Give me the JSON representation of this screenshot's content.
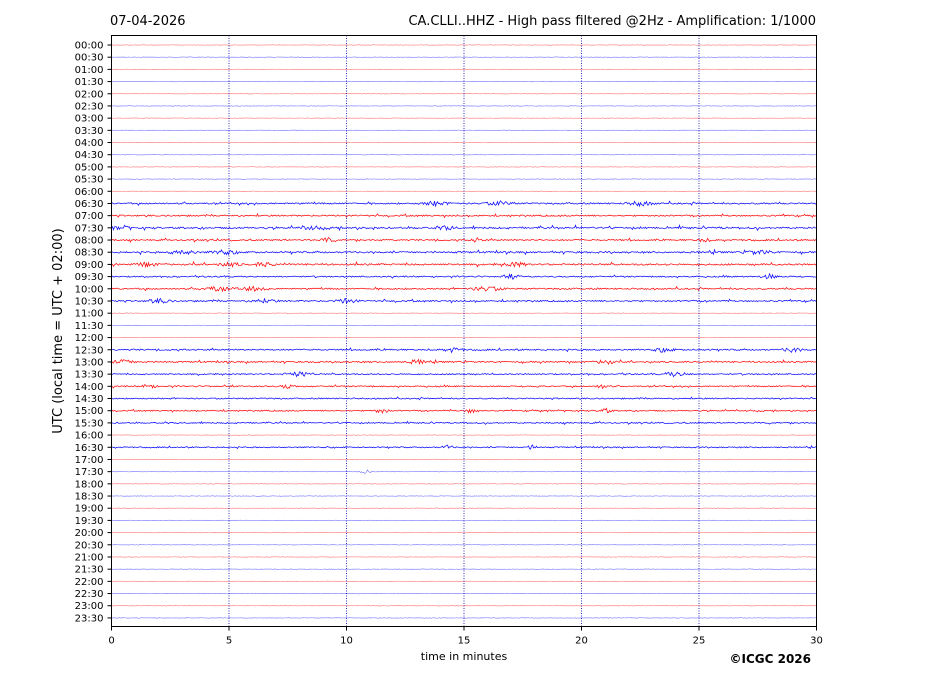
{
  "header": {
    "date": "07-04-2026",
    "title": "CA.CLLI..HHZ - High pass filtered @2Hz - Amplification: 1/1000"
  },
  "footer": {
    "copyright": "©ICGC 2026"
  },
  "colors": {
    "trace_red": "#ff0000",
    "trace_blue": "#0000ff",
    "grid_vertical": "#0000aa",
    "axes": "#000000"
  },
  "chart_data": {
    "type": "line",
    "title": "CA.CLLI..HHZ - High pass filtered @2Hz - Amplification: 1/1000",
    "xlabel": "time in minutes",
    "ylabel": "UTC (local time = UTC + 02:00)",
    "xlim": [
      0,
      30
    ],
    "x_ticks": [
      "0",
      "5",
      "10",
      "15",
      "20",
      "25",
      "30"
    ],
    "x_tick_values": [
      0,
      5,
      10,
      15,
      20,
      25,
      30
    ],
    "vertical_gridlines_at": [
      5,
      10,
      15,
      20,
      25
    ],
    "y_tick_labels": [
      "00:00",
      "00:30",
      "01:00",
      "01:30",
      "02:00",
      "02:30",
      "03:00",
      "03:30",
      "04:00",
      "04:30",
      "05:00",
      "05:30",
      "06:00",
      "06:30",
      "07:00",
      "07:30",
      "08:00",
      "08:30",
      "09:00",
      "09:30",
      "10:00",
      "10:30",
      "11:00",
      "11:30",
      "12:00",
      "12:30",
      "13:00",
      "13:30",
      "14:00",
      "14:30",
      "15:00",
      "15:30",
      "16:00",
      "16:30",
      "17:00",
      "17:30",
      "18:00",
      "18:30",
      "19:00",
      "19:30",
      "20:00",
      "20:30",
      "21:00",
      "21:30",
      "22:00",
      "22:30",
      "23:00",
      "23:30"
    ],
    "trace_color_pattern": [
      "red",
      "blue"
    ],
    "trace_activity": [
      1,
      1,
      1,
      1,
      1,
      1,
      1,
      1,
      1,
      1,
      1,
      1,
      1,
      3,
      3,
      4,
      3,
      4,
      4,
      2,
      3,
      3,
      1,
      1,
      1,
      3,
      3,
      2,
      2,
      2,
      2,
      2,
      1,
      2,
      1,
      1,
      1,
      1,
      1,
      1,
      1,
      1,
      1,
      1,
      1,
      1,
      1,
      1
    ],
    "bursts": [
      {
        "row": 13,
        "at": [
          13.8,
          16.5,
          22.5
        ],
        "width": 1.6
      },
      {
        "row": 15,
        "at": [
          0.5,
          8.5,
          14.2
        ],
        "width": 1.2
      },
      {
        "row": 16,
        "at": [
          9.2,
          15.5,
          25.2
        ],
        "width": 0.8
      },
      {
        "row": 17,
        "at": [
          3.0,
          4.8,
          27.5
        ],
        "width": 1.8
      },
      {
        "row": 18,
        "at": [
          1.5,
          5.0,
          6.5,
          17.2
        ],
        "width": 1.4
      },
      {
        "row": 19,
        "at": [
          17.0,
          28.0
        ],
        "width": 1.0
      },
      {
        "row": 20,
        "at": [
          4.5,
          6.0,
          16.0
        ],
        "width": 2.0
      },
      {
        "row": 21,
        "at": [
          2.0,
          6.5,
          10.0
        ],
        "width": 1.4
      },
      {
        "row": 25,
        "at": [
          14.5,
          23.5,
          29.0
        ],
        "width": 1.2
      },
      {
        "row": 26,
        "at": [
          0.5,
          13.0,
          21.0
        ],
        "width": 1.2
      },
      {
        "row": 27,
        "at": [
          8.0,
          24.0
        ],
        "width": 1.6
      },
      {
        "row": 28,
        "at": [
          1.6,
          7.5,
          20.9
        ],
        "width": 0.8
      },
      {
        "row": 30,
        "at": [
          11.5,
          15.3,
          21.0
        ],
        "width": 0.8
      },
      {
        "row": 33,
        "at": [
          14.3,
          17.9
        ],
        "width": 0.6
      },
      {
        "row": 35,
        "at": [
          10.8
        ],
        "width": 0.6
      }
    ]
  }
}
